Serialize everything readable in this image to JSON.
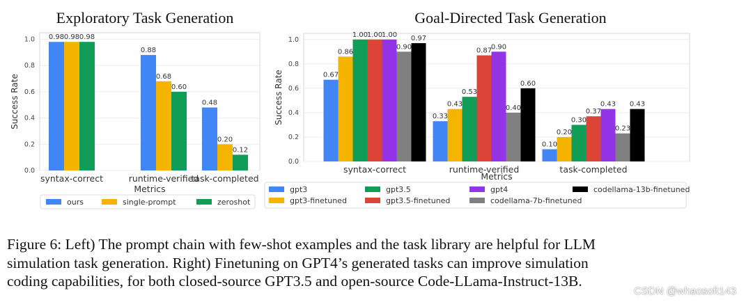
{
  "chart_data": [
    {
      "type": "bar",
      "title": "Exploratory Task Generation",
      "xlabel": "Metrics",
      "ylabel": "Success Rate",
      "ylim": [
        0,
        1.05
      ],
      "yticks": [
        "0.0",
        "0.2",
        "0.4",
        "0.6",
        "0.8",
        "1.0"
      ],
      "grid": true,
      "legend_position": "bottom",
      "categories": [
        "syntax-correct",
        "runtime-verified",
        "task-completed"
      ],
      "series": [
        {
          "name": "ours",
          "color": "#4285f4",
          "values": [
            0.98,
            0.88,
            0.48
          ],
          "labels": [
            "0.98",
            "0.88",
            "0.48"
          ]
        },
        {
          "name": "single-prompt",
          "color": "#f4b400",
          "values": [
            0.98,
            0.68,
            0.2
          ],
          "labels": [
            "0.98",
            "0.68",
            "0.20"
          ]
        },
        {
          "name": "zeroshot",
          "color": "#0f9d58",
          "values": [
            0.98,
            0.6,
            0.12
          ],
          "labels": [
            "0.98",
            "0.60",
            "0.12"
          ]
        }
      ]
    },
    {
      "type": "bar",
      "title": "Goal-Directed Task Generation",
      "xlabel": "Metrics",
      "ylabel": "Success Rate",
      "ylim": [
        0,
        1.05
      ],
      "yticks": [
        "0.0",
        "0.2",
        "0.4",
        "0.6",
        "0.8",
        "1.0"
      ],
      "grid": true,
      "legend_position": "bottom",
      "categories": [
        "syntax-correct",
        "runtime-verified",
        "task-completed"
      ],
      "series": [
        {
          "name": "gpt3",
          "color": "#4285f4",
          "values": [
            0.67,
            0.33,
            0.1
          ],
          "labels": [
            "0.67",
            "0.33",
            "0.10"
          ]
        },
        {
          "name": "gpt3-finetuned",
          "color": "#f4b400",
          "values": [
            0.86,
            0.43,
            0.2
          ],
          "labels": [
            "0.86",
            "0.43",
            "0.20"
          ]
        },
        {
          "name": "gpt3.5",
          "color": "#0f9d58",
          "values": [
            1.0,
            0.53,
            0.3
          ],
          "labels": [
            "1.00",
            "0.53",
            "0.30"
          ]
        },
        {
          "name": "gpt3.5-finetuned",
          "color": "#db4437",
          "values": [
            1.0,
            0.87,
            0.37
          ],
          "labels": [
            "1.00",
            "0.87",
            "0.37"
          ]
        },
        {
          "name": "gpt4",
          "color": "#9334e6",
          "values": [
            1.0,
            0.9,
            0.43
          ],
          "labels": [
            "1.00",
            "0.90",
            "0.43"
          ]
        },
        {
          "name": "codellama-7b-finetuned",
          "color": "#808080",
          "values": [
            0.9,
            0.4,
            0.23
          ],
          "labels": [
            "0.90",
            "0.40",
            "0.23"
          ]
        },
        {
          "name": "codellama-13b-finetuned",
          "color": "#000000",
          "values": [
            0.97,
            0.6,
            0.43
          ],
          "labels": [
            "0.97",
            "0.60",
            "0.43"
          ]
        }
      ]
    }
  ],
  "caption": [
    "Figure 6: Left) The prompt chain with few-shot examples and the task library are helpful for LLM",
    "simulation task generation. Right) Finetuning on GPT4’s generated tasks can improve simulation",
    "coding capabilities, for both closed-source GPT3.5 and open-source Code-LLama-Instruct-13B."
  ],
  "watermark": "CSDN @whaosoft143"
}
